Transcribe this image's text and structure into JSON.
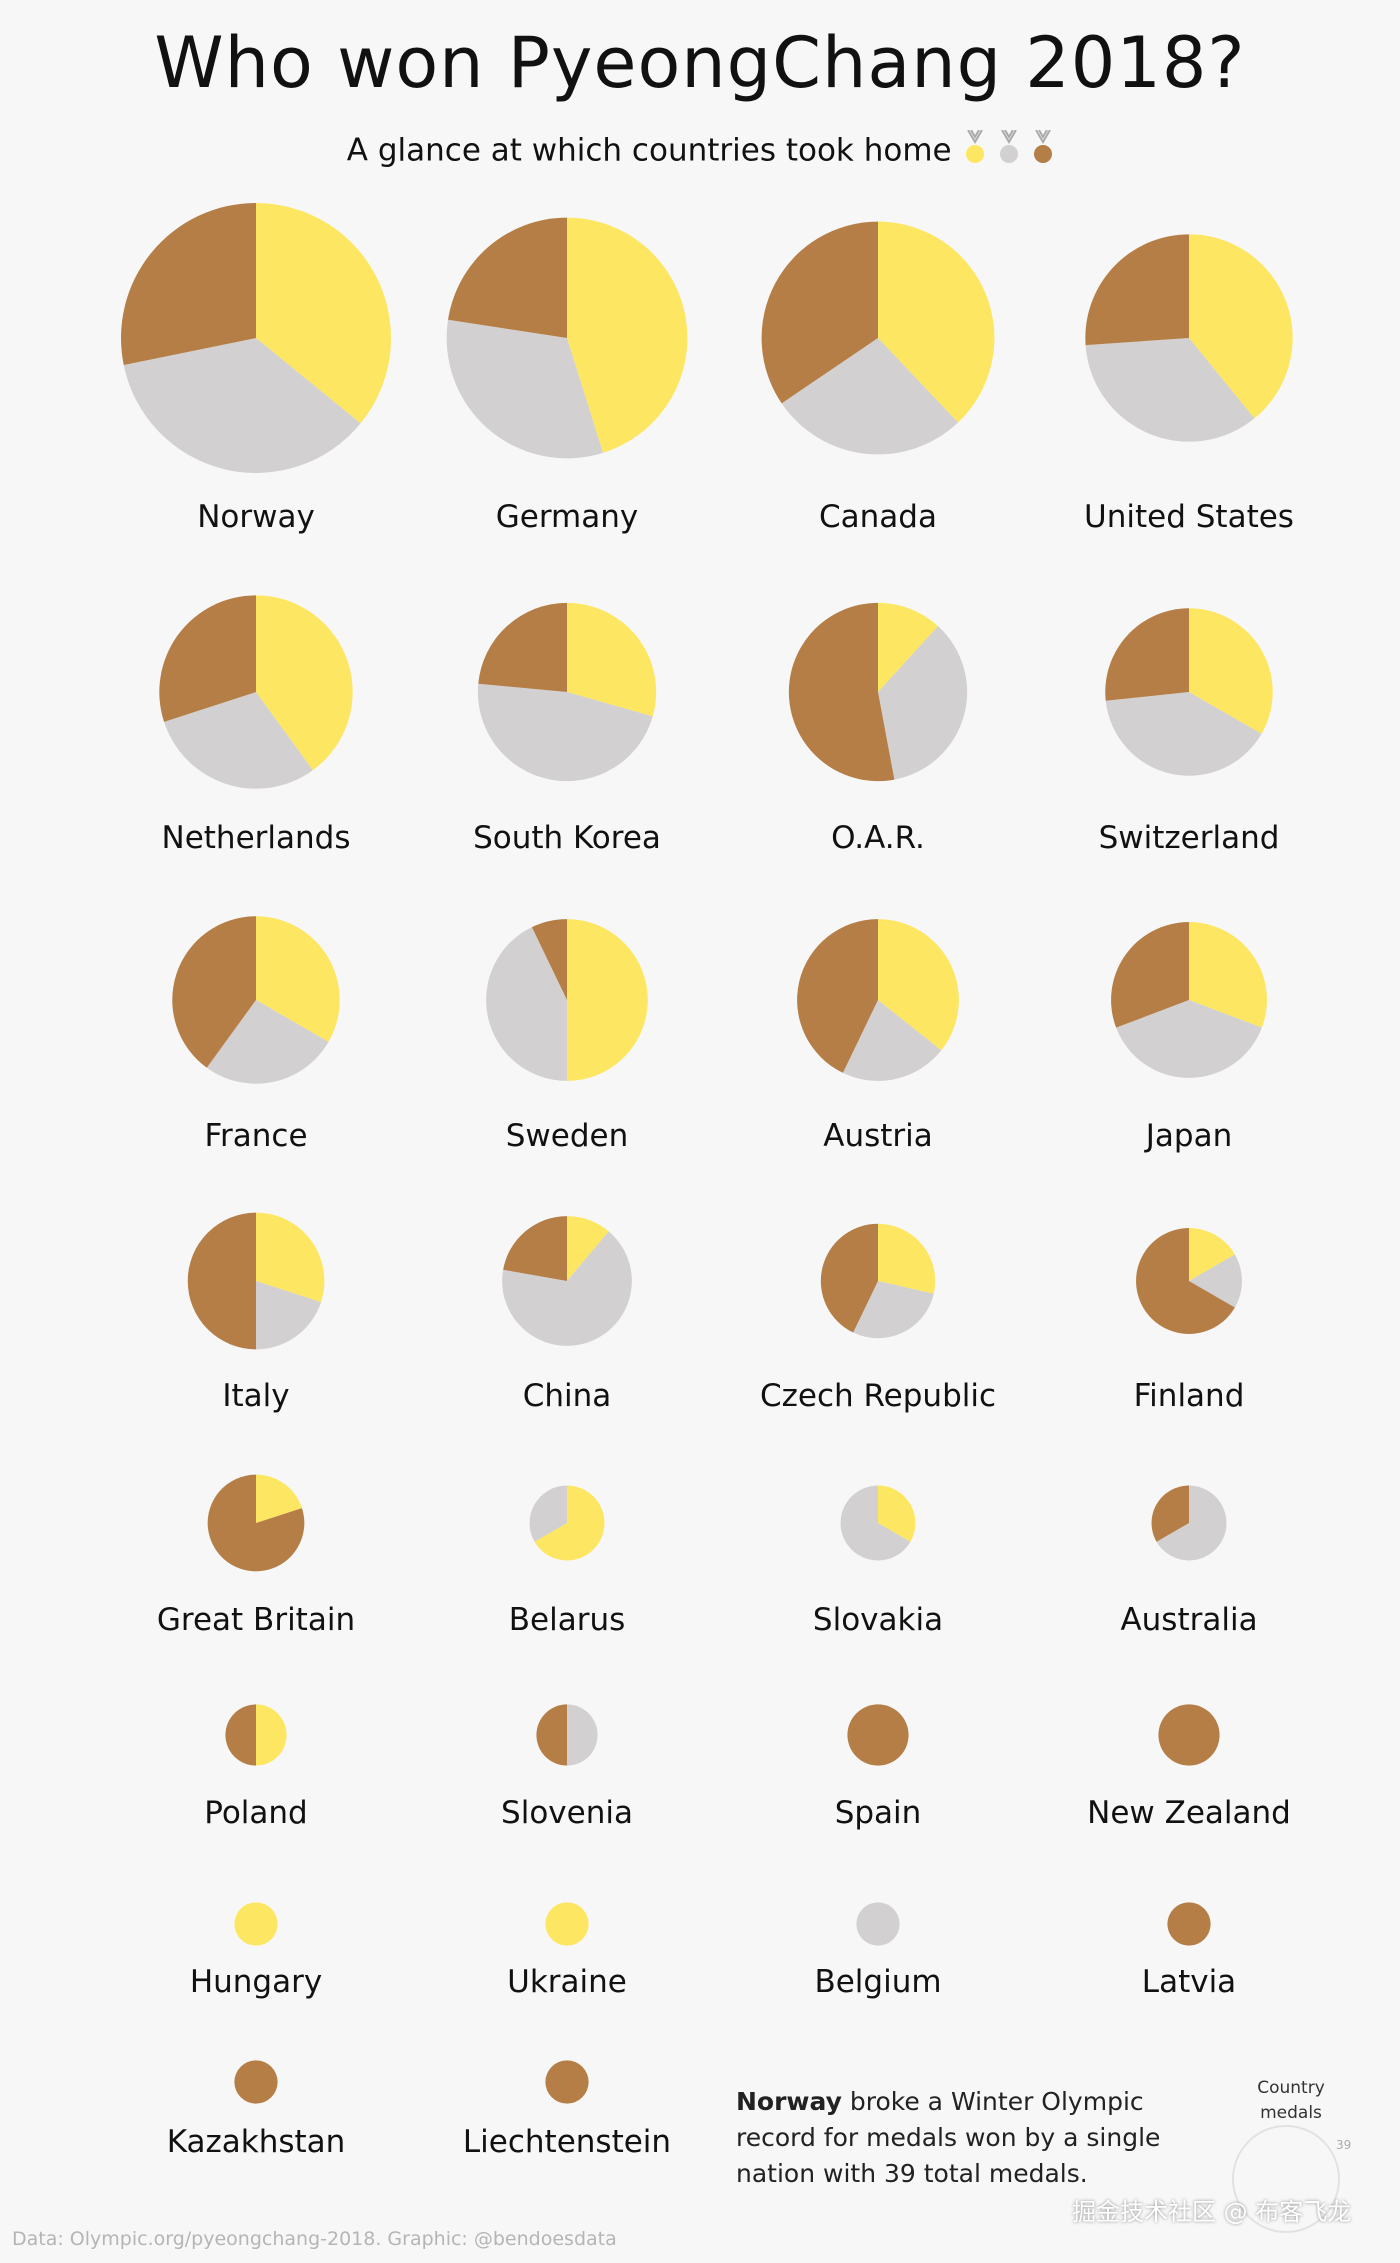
{
  "title": "Who won PyeongChang 2018?",
  "subtitle": "A glance at which countries took home",
  "colors": {
    "gold": "#fde661",
    "silver": "#d2d0d0",
    "bronze": "#b57e46"
  },
  "subtitle_icons": [
    "gold-medal-icon",
    "silver-medal-icon",
    "bronze-medal-icon"
  ],
  "chart_data": {
    "type": "pie",
    "series_names": [
      "gold",
      "silver",
      "bronze"
    ],
    "countries": [
      {
        "name": "Norway",
        "gold": 14,
        "silver": 14,
        "bronze": 11
      },
      {
        "name": "Germany",
        "gold": 14,
        "silver": 10,
        "bronze": 7
      },
      {
        "name": "Canada",
        "gold": 11,
        "silver": 8,
        "bronze": 10
      },
      {
        "name": "United States",
        "gold": 9,
        "silver": 8,
        "bronze": 6
      },
      {
        "name": "Netherlands",
        "gold": 8,
        "silver": 6,
        "bronze": 6
      },
      {
        "name": "South Korea",
        "gold": 5,
        "silver": 8,
        "bronze": 4
      },
      {
        "name": "O.A.R.",
        "gold": 2,
        "silver": 6,
        "bronze": 9
      },
      {
        "name": "Switzerland",
        "gold": 5,
        "silver": 6,
        "bronze": 4
      },
      {
        "name": "France",
        "gold": 5,
        "silver": 4,
        "bronze": 6
      },
      {
        "name": "Sweden",
        "gold": 7,
        "silver": 6,
        "bronze": 1
      },
      {
        "name": "Austria",
        "gold": 5,
        "silver": 3,
        "bronze": 6
      },
      {
        "name": "Japan",
        "gold": 4,
        "silver": 5,
        "bronze": 4
      },
      {
        "name": "Italy",
        "gold": 3,
        "silver": 2,
        "bronze": 5
      },
      {
        "name": "China",
        "gold": 1,
        "silver": 6,
        "bronze": 2
      },
      {
        "name": "Czech Republic",
        "gold": 2,
        "silver": 2,
        "bronze": 3
      },
      {
        "name": "Finland",
        "gold": 1,
        "silver": 1,
        "bronze": 4
      },
      {
        "name": "Great Britain",
        "gold": 1,
        "silver": 0,
        "bronze": 4
      },
      {
        "name": "Belarus",
        "gold": 2,
        "silver": 1,
        "bronze": 0
      },
      {
        "name": "Slovakia",
        "gold": 1,
        "silver": 2,
        "bronze": 0
      },
      {
        "name": "Australia",
        "gold": 0,
        "silver": 2,
        "bronze": 1
      },
      {
        "name": "Poland",
        "gold": 1,
        "silver": 0,
        "bronze": 1
      },
      {
        "name": "Slovenia",
        "gold": 0,
        "silver": 1,
        "bronze": 1
      },
      {
        "name": "Spain",
        "gold": 0,
        "silver": 0,
        "bronze": 2
      },
      {
        "name": "New Zealand",
        "gold": 0,
        "silver": 0,
        "bronze": 2
      },
      {
        "name": "Hungary",
        "gold": 1,
        "silver": 0,
        "bronze": 0
      },
      {
        "name": "Ukraine",
        "gold": 1,
        "silver": 0,
        "bronze": 0
      },
      {
        "name": "Belgium",
        "gold": 0,
        "silver": 1,
        "bronze": 0
      },
      {
        "name": "Latvia",
        "gold": 0,
        "silver": 0,
        "bronze": 1
      },
      {
        "name": "Kazakhstan",
        "gold": 0,
        "silver": 0,
        "bronze": 1
      },
      {
        "name": "Liechtenstein",
        "gold": 0,
        "silver": 0,
        "bronze": 1
      }
    ]
  },
  "note": {
    "bold": "Norway",
    "text": " broke a Winter Olympic record for medals won by a single nation with 39 total medals."
  },
  "legend": {
    "label": "Country medals",
    "value": "39"
  },
  "source": "Data: Olympic.org/pyeongchang-2018. Graphic: @bendoesdata",
  "watermark": "掘金技术社区 @ 布客飞龙"
}
